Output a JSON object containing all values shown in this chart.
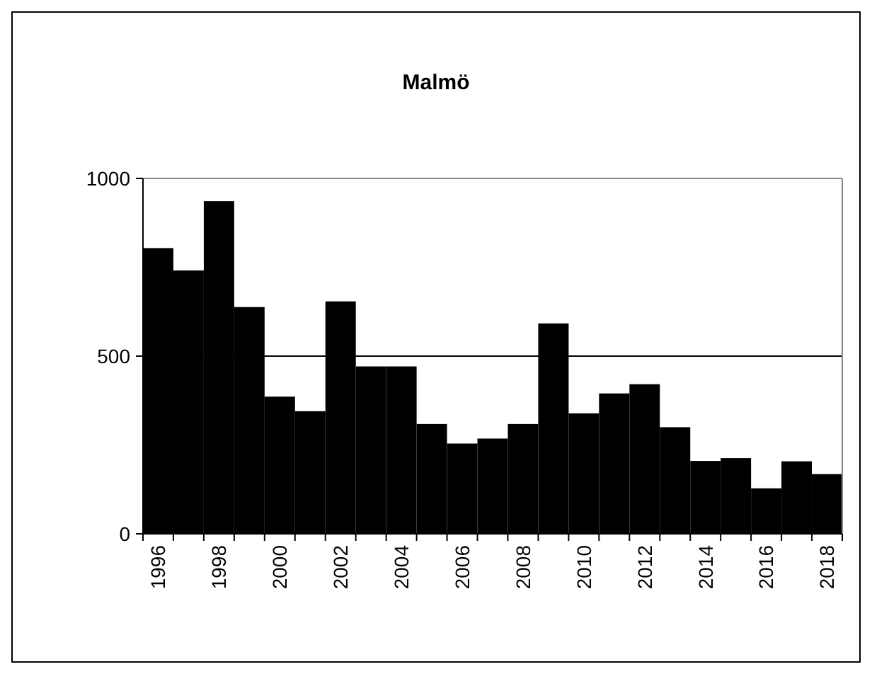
{
  "chart_data": {
    "type": "bar",
    "title": "Malmö",
    "categories": [
      "1996",
      null,
      "1998",
      null,
      "2000",
      null,
      "2002",
      null,
      "2004",
      null,
      "2006",
      null,
      "2008",
      null,
      "2010",
      null,
      "2012",
      null,
      "2014",
      null,
      "2016",
      null,
      "2018"
    ],
    "values": [
      804,
      741,
      936,
      638,
      386,
      345,
      654,
      471,
      471,
      309,
      254,
      268,
      309,
      592,
      339,
      395,
      421,
      300,
      205,
      213,
      128,
      204,
      168
    ],
    "color": "#000000",
    "ylim": [
      0,
      1000
    ],
    "yticks": [
      0,
      500,
      1000
    ],
    "grid": "y"
  }
}
